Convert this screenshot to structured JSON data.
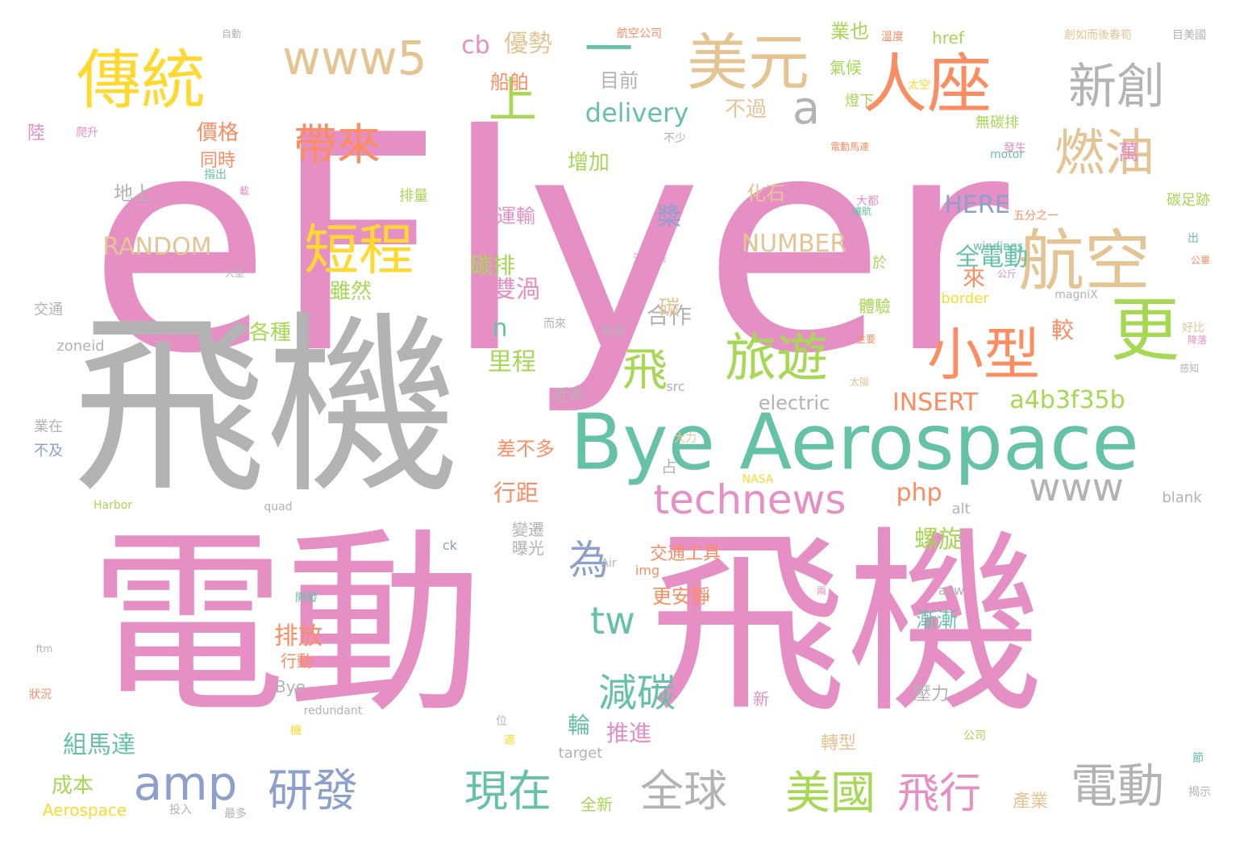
{
  "colors": {
    "pink": "#e68fc4",
    "grey": "#b3b3b3",
    "green": "#66c2a5",
    "orange": "#fc8d62",
    "blue": "#8da0cb",
    "lime": "#a6d854",
    "yellow": "#ffd92f",
    "tan": "#e5c494"
  },
  "words": [
    {
      "text": "eFlyer",
      "color": "pink"
    },
    {
      "text": "飛機",
      "color": "grey"
    },
    {
      "text": "電動",
      "color": "pink"
    },
    {
      "text": "飛機",
      "color": "pink"
    },
    {
      "text": "Bye Aerospace",
      "color": "green"
    },
    {
      "text": "人座",
      "color": "orange"
    },
    {
      "text": "美元",
      "color": "tan"
    },
    {
      "text": "傳統",
      "color": "yellow"
    },
    {
      "text": "新創",
      "color": "grey"
    },
    {
      "text": "航空",
      "color": "tan"
    },
    {
      "text": "燃油",
      "color": "tan"
    },
    {
      "text": "更",
      "color": "lime"
    },
    {
      "text": "小型",
      "color": "orange"
    },
    {
      "text": "旅遊",
      "color": "lime"
    },
    {
      "text": "短程",
      "color": "yellow"
    },
    {
      "text": "帶來",
      "color": "orange"
    },
    {
      "text": "上",
      "color": "lime"
    },
    {
      "text": "一",
      "color": "green"
    },
    {
      "text": "www5",
      "color": "tan"
    },
    {
      "text": "a",
      "color": "grey"
    },
    {
      "text": "飛",
      "color": "lime"
    },
    {
      "text": "amp",
      "color": "blue"
    },
    {
      "text": "研發",
      "color": "blue"
    },
    {
      "text": "現在",
      "color": "green"
    },
    {
      "text": "全球",
      "color": "grey"
    },
    {
      "text": "美國",
      "color": "lime"
    },
    {
      "text": "飛行",
      "color": "pink"
    },
    {
      "text": "電動",
      "color": "grey"
    },
    {
      "text": "technews",
      "color": "pink"
    },
    {
      "text": "www",
      "color": "grey"
    },
    {
      "text": "為",
      "color": "blue"
    },
    {
      "text": "tw",
      "color": "green"
    },
    {
      "text": "減碳",
      "color": "green"
    },
    {
      "text": "a4b3f35b",
      "color": "lime"
    },
    {
      "text": "delivery",
      "color": "green"
    },
    {
      "text": "electric",
      "color": "grey"
    },
    {
      "text": "INSERT",
      "color": "orange"
    },
    {
      "text": "NUMBER",
      "color": "tan"
    },
    {
      "text": "RANDOM",
      "color": "tan"
    },
    {
      "text": "HERE",
      "color": "blue"
    },
    {
      "text": "cb",
      "color": "pink"
    },
    {
      "text": "優勢",
      "color": "tan"
    },
    {
      "text": "目前",
      "color": "grey"
    },
    {
      "text": "增加",
      "color": "lime"
    },
    {
      "text": "不過",
      "color": "tan"
    },
    {
      "text": "全電動",
      "color": "green"
    },
    {
      "text": "雙渦",
      "color": "pink"
    },
    {
      "text": "價格",
      "color": "orange"
    },
    {
      "text": "同時",
      "color": "orange"
    },
    {
      "text": "地上",
      "color": "grey"
    },
    {
      "text": "排放",
      "color": "orange"
    },
    {
      "text": "行距",
      "color": "orange"
    },
    {
      "text": "里程",
      "color": "lime"
    },
    {
      "text": "合作",
      "color": "grey"
    },
    {
      "text": "各種",
      "color": "lime"
    },
    {
      "text": "組馬達",
      "color": "green"
    },
    {
      "text": "成本",
      "color": "lime"
    },
    {
      "text": "推進",
      "color": "pink"
    },
    {
      "text": "螺旋",
      "color": "lime"
    },
    {
      "text": "交通工具",
      "color": "orange"
    },
    {
      "text": "php",
      "color": "orange"
    },
    {
      "text": "n",
      "color": "green"
    },
    {
      "text": "槳",
      "color": "blue"
    },
    {
      "text": "碳",
      "color": "tan"
    },
    {
      "text": "碳排",
      "color": "lime"
    },
    {
      "text": "化石",
      "color": "tan"
    },
    {
      "text": "運輸",
      "color": "pink"
    },
    {
      "text": "船舶",
      "color": "orange"
    },
    {
      "text": "來",
      "color": "orange"
    },
    {
      "text": "較",
      "color": "orange"
    },
    {
      "text": "萬",
      "color": "pink"
    },
    {
      "text": "輪",
      "color": "green"
    },
    {
      "text": "占",
      "color": "grey"
    },
    {
      "text": "近年",
      "color": "grey"
    },
    {
      "text": "差不多",
      "color": "orange"
    },
    {
      "text": "雖然",
      "color": "lime"
    },
    {
      "text": "漸漸",
      "color": "green"
    },
    {
      "text": "壓力",
      "color": "grey"
    },
    {
      "text": "行動",
      "color": "orange"
    },
    {
      "text": "Bye",
      "color": "grey"
    },
    {
      "text": "變遷",
      "color": "grey"
    },
    {
      "text": "曝光",
      "color": "grey"
    },
    {
      "text": "更安靜",
      "color": "orange"
    },
    {
      "text": "產業",
      "color": "tan"
    },
    {
      "text": "轉型",
      "color": "tan"
    },
    {
      "text": "全新",
      "color": "lime"
    },
    {
      "text": "業在",
      "color": "grey"
    },
    {
      "text": "不及",
      "color": "blue"
    },
    {
      "text": "交通",
      "color": "grey"
    },
    {
      "text": "zoneid",
      "color": "grey"
    },
    {
      "text": "Aerospace",
      "color": "yellow"
    },
    {
      "text": "target",
      "color": "grey"
    },
    {
      "text": "blank",
      "color": "grey"
    },
    {
      "text": "alt",
      "color": "grey"
    },
    {
      "text": "avw",
      "color": "grey"
    },
    {
      "text": "img",
      "color": "orange"
    },
    {
      "text": "src",
      "color": "grey"
    },
    {
      "text": "ck",
      "color": "blue"
    },
    {
      "text": "quad",
      "color": "grey"
    },
    {
      "text": "Harbor",
      "color": "lime"
    },
    {
      "text": "NASA",
      "color": "yellow"
    },
    {
      "text": "Air",
      "color": "grey"
    },
    {
      "text": "redundant",
      "color": "grey"
    },
    {
      "text": "ftm",
      "color": "grey"
    },
    {
      "text": "href",
      "color": "lime"
    },
    {
      "text": "border",
      "color": "yellow"
    },
    {
      "text": "motor",
      "color": "green"
    },
    {
      "text": "windings",
      "color": "green"
    },
    {
      "text": "magniX",
      "color": "grey"
    },
    {
      "text": "業也",
      "color": "lime"
    },
    {
      "text": "氣候",
      "color": "lime"
    },
    {
      "text": "燈下",
      "color": "lime"
    },
    {
      "text": "無碳排",
      "color": "lime"
    },
    {
      "text": "體驗",
      "color": "lime"
    },
    {
      "text": "於",
      "color": "lime"
    },
    {
      "text": "碳足跡",
      "color": "lime"
    },
    {
      "text": "排量",
      "color": "lime"
    },
    {
      "text": "陸",
      "color": "pink"
    },
    {
      "text": "新",
      "color": "pink"
    },
    {
      "text": "航空公司",
      "color": "orange"
    },
    {
      "text": "自動",
      "color": "grey"
    },
    {
      "text": "創如而後春筍",
      "color": "tan"
    },
    {
      "text": "目美國",
      "color": "grey"
    },
    {
      "text": "公司",
      "color": "lime"
    },
    {
      "text": "公斤",
      "color": "pink"
    },
    {
      "text": "好比",
      "color": "tan"
    },
    {
      "text": "新型",
      "color": "grey"
    },
    {
      "text": "大型",
      "color": "grey"
    },
    {
      "text": "爬升",
      "color": "pink"
    },
    {
      "text": "開發",
      "color": "green"
    },
    {
      "text": "狀況",
      "color": "orange"
    },
    {
      "text": "投入",
      "color": "grey"
    },
    {
      "text": "最多",
      "color": "grey"
    },
    {
      "text": "節",
      "color": "green"
    },
    {
      "text": "揭示",
      "color": "grey"
    },
    {
      "text": "溫哥華",
      "color": "pink"
    },
    {
      "text": "大力",
      "color": "tan"
    },
    {
      "text": "不少",
      "color": "grey"
    },
    {
      "text": "太空",
      "color": "yellow"
    },
    {
      "text": "大都",
      "color": "pink"
    },
    {
      "text": "讓航",
      "color": "green"
    },
    {
      "text": "五分之一",
      "color": "orange"
    },
    {
      "text": "出",
      "color": "green"
    },
    {
      "text": "公畢",
      "color": "orange"
    },
    {
      "text": "主要",
      "color": "orange"
    },
    {
      "text": "太陽",
      "color": "tan"
    },
    {
      "text": "電動馬達",
      "color": "orange"
    },
    {
      "text": "而來",
      "color": "grey"
    },
    {
      "text": "位",
      "color": "grey"
    },
    {
      "text": "機",
      "color": "yellow"
    },
    {
      "text": "適",
      "color": "yellow"
    },
    {
      "text": "發生",
      "color": "pink"
    },
    {
      "text": "降落",
      "color": "pink"
    },
    {
      "text": "兩",
      "color": "pink"
    },
    {
      "text": "感知",
      "color": "grey"
    },
    {
      "text": "溫度",
      "color": "orange"
    },
    {
      "text": "載",
      "color": "pink"
    },
    {
      "text": "指出",
      "color": "green"
    }
  ]
}
